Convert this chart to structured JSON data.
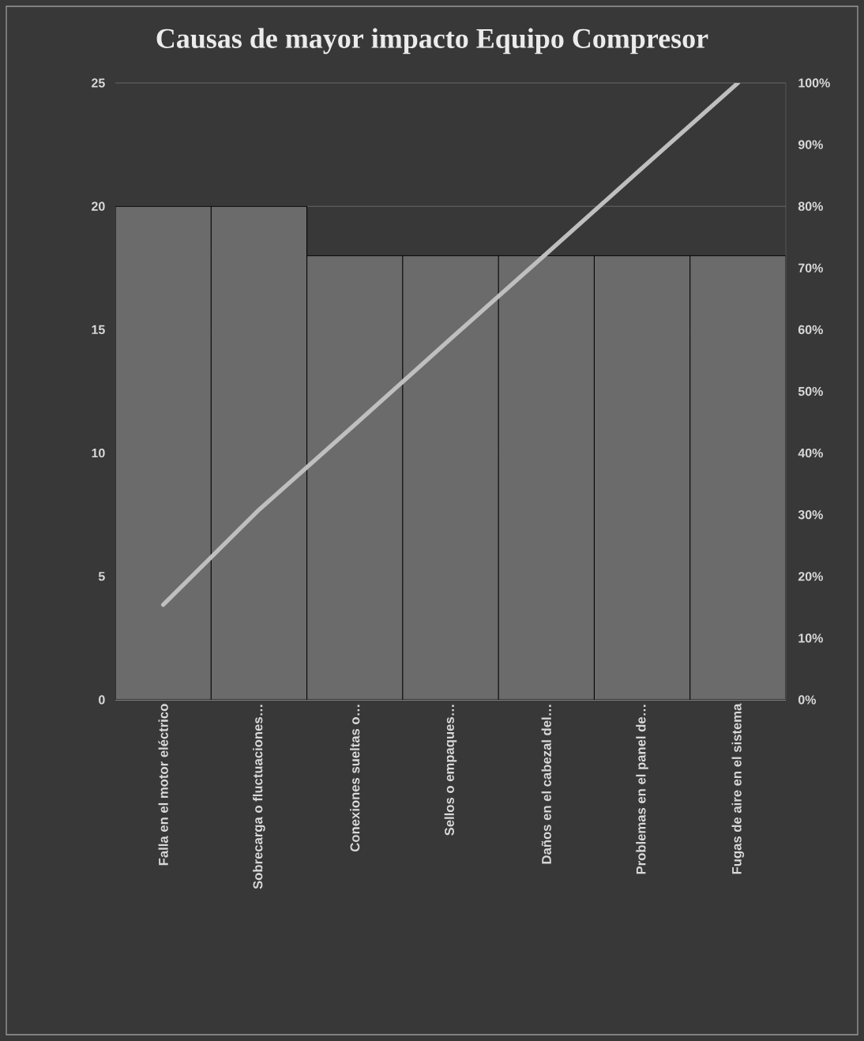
{
  "chart_data": {
    "type": "bar",
    "title": "Causas de mayor impacto Equipo Compresor",
    "categories": [
      "Falla en el motor eléctrico",
      "Sobrecarga o fluctuaciones…",
      "Conexiones sueltas o…",
      "Sellos o empaques…",
      "Daños en el cabezal del…",
      "Problemas en el panel de…",
      "Fugas de aire en el sistema"
    ],
    "series": [
      {
        "color": "#6b6b6b",
        "values": [
          20,
          20,
          18,
          18,
          18,
          18,
          18
        ]
      },
      {
        "type": "line",
        "axis": "y2",
        "color": "#bfbfbf",
        "values": [
          15.4,
          30.8,
          44.6,
          58.5,
          72.3,
          86.2,
          100
        ]
      }
    ],
    "ylim": [
      0,
      25
    ],
    "yticks": [
      0,
      5,
      10,
      15,
      20,
      25
    ],
    "y2lim": [
      0,
      100
    ],
    "y2ticks": [
      {
        "value": 0,
        "label": "0%"
      },
      {
        "value": 10,
        "label": "10%"
      },
      {
        "value": 20,
        "label": "20%"
      },
      {
        "value": 30,
        "label": "30%"
      },
      {
        "value": 40,
        "label": "40%"
      },
      {
        "value": 50,
        "label": "50%"
      },
      {
        "value": 60,
        "label": "60%"
      },
      {
        "value": 70,
        "label": "70%"
      },
      {
        "value": 80,
        "label": "80%"
      },
      {
        "value": 90,
        "label": "90%"
      },
      {
        "value": 100,
        "label": "100%"
      }
    ],
    "grid": "y",
    "marker": "none",
    "line_style": "solid"
  }
}
